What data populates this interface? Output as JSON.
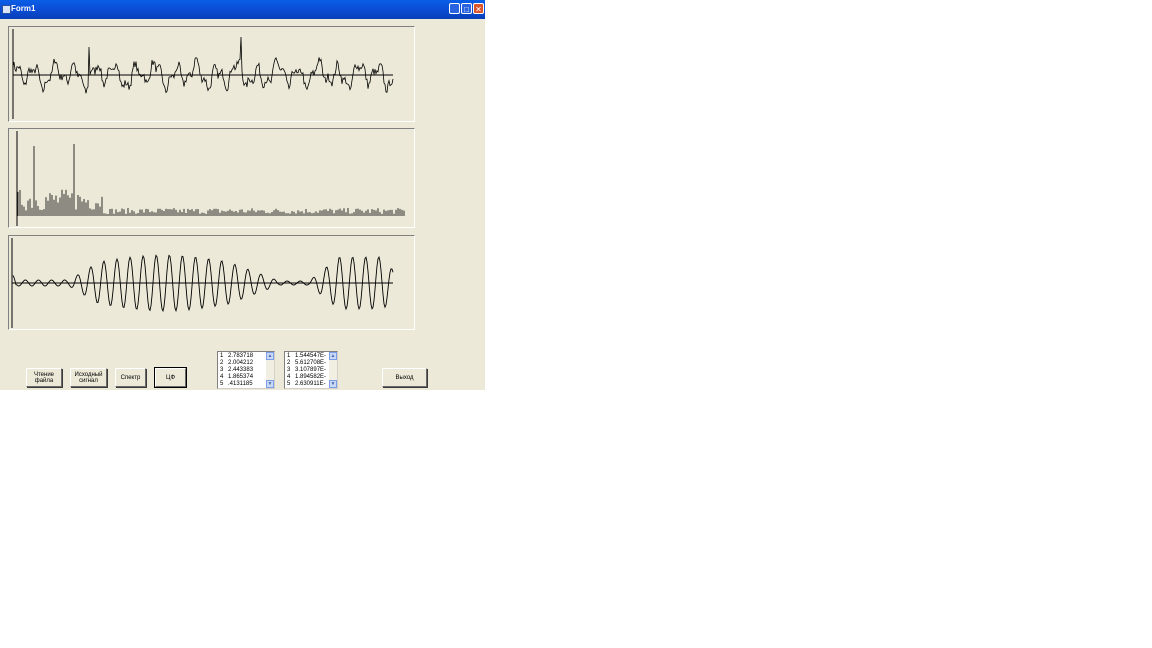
{
  "window": {
    "title": "Form1"
  },
  "buttons": {
    "read_file": "Чтение\nфайла",
    "source_signal": "Исходный\nсигнал",
    "spectrum": "Спектр",
    "digital_filter": "ЦФ",
    "exit": "Выход"
  },
  "list1": [
    {
      "n": "1",
      "v": "2.783718"
    },
    {
      "n": "2",
      "v": "2.004212"
    },
    {
      "n": "3",
      "v": "2.443383"
    },
    {
      "n": "4",
      "v": "1.865374"
    },
    {
      "n": "5",
      "v": ".4131185"
    }
  ],
  "list2": [
    {
      "n": "1",
      "v": "1.544547E-"
    },
    {
      "n": "2",
      "v": "5.612708E-"
    },
    {
      "n": "3",
      "v": "3.107897E-"
    },
    {
      "n": "4",
      "v": "1.894582E-"
    },
    {
      "n": "5",
      "v": "2.630911E-"
    }
  ],
  "icons": [
    "window-icon",
    "minimize-icon",
    "maximize-icon",
    "close-icon",
    "scroll-up-icon",
    "scroll-down-icon"
  ]
}
